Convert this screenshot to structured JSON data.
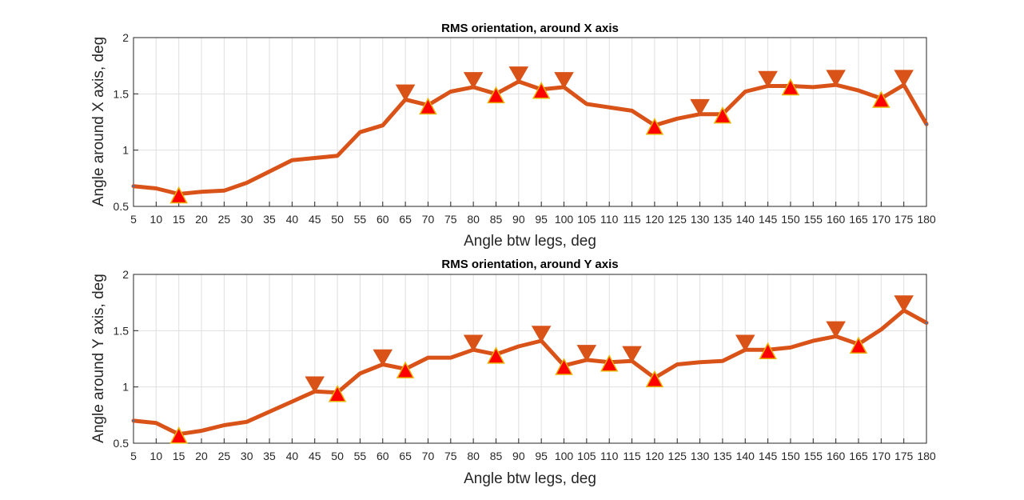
{
  "chart_data": [
    {
      "type": "line",
      "title": "RMS orientation, around X axis",
      "xlabel": "Angle btw legs, deg",
      "ylabel": "Angle around X axis, deg",
      "xlim": [
        5,
        180
      ],
      "ylim": [
        0.5,
        2
      ],
      "x_ticks": [
        5,
        10,
        15,
        20,
        25,
        30,
        35,
        40,
        45,
        50,
        55,
        60,
        65,
        70,
        75,
        80,
        85,
        90,
        95,
        100,
        105,
        110,
        115,
        120,
        125,
        130,
        135,
        140,
        145,
        150,
        155,
        160,
        165,
        170,
        175,
        180
      ],
      "y_ticks": [
        0.5,
        1,
        1.5,
        2
      ],
      "y_tick_labels": [
        "0.5",
        "1",
        "1.5",
        "2"
      ],
      "grid": true,
      "line_color": "#d95319",
      "marker_color": "#ff0000",
      "x": [
        5,
        10,
        15,
        20,
        25,
        30,
        35,
        40,
        45,
        50,
        55,
        60,
        65,
        70,
        75,
        80,
        85,
        90,
        95,
        100,
        105,
        110,
        115,
        120,
        125,
        130,
        135,
        140,
        145,
        150,
        155,
        160,
        165,
        170,
        175,
        180
      ],
      "y": [
        0.68,
        0.66,
        0.61,
        0.63,
        0.64,
        0.71,
        0.81,
        0.91,
        0.93,
        0.95,
        1.16,
        1.22,
        1.45,
        1.4,
        1.52,
        1.56,
        1.5,
        1.61,
        1.54,
        1.56,
        1.41,
        1.38,
        1.35,
        1.22,
        1.28,
        1.32,
        1.32,
        1.52,
        1.57,
        1.57,
        1.56,
        1.58,
        1.53,
        1.46,
        1.58,
        1.23
      ],
      "peaks_x": [
        65,
        80,
        90,
        100,
        130,
        145,
        160,
        175
      ],
      "troughs_x": [
        15,
        70,
        85,
        95,
        120,
        135,
        150,
        170
      ]
    },
    {
      "type": "line",
      "title": "RMS orientation, around Y axis",
      "xlabel": "Angle btw legs, deg",
      "ylabel": "Angle around Y axis, deg",
      "xlim": [
        5,
        180
      ],
      "ylim": [
        0.5,
        2
      ],
      "x_ticks": [
        5,
        10,
        15,
        20,
        25,
        30,
        35,
        40,
        45,
        50,
        55,
        60,
        65,
        70,
        75,
        80,
        85,
        90,
        95,
        100,
        105,
        110,
        115,
        120,
        125,
        130,
        135,
        140,
        145,
        150,
        155,
        160,
        165,
        170,
        175,
        180
      ],
      "y_ticks": [
        0.5,
        1,
        1.5,
        2
      ],
      "y_tick_labels": [
        "0.5",
        "1",
        "1.5",
        "2"
      ],
      "grid": true,
      "line_color": "#d95319",
      "marker_color": "#ff0000",
      "x": [
        5,
        10,
        15,
        20,
        25,
        30,
        35,
        40,
        45,
        50,
        55,
        60,
        65,
        70,
        75,
        80,
        85,
        90,
        95,
        100,
        105,
        110,
        115,
        120,
        125,
        130,
        135,
        140,
        145,
        150,
        155,
        160,
        165,
        170,
        175,
        180
      ],
      "y": [
        0.7,
        0.68,
        0.58,
        0.61,
        0.66,
        0.69,
        0.78,
        0.87,
        0.96,
        0.95,
        1.12,
        1.2,
        1.16,
        1.26,
        1.26,
        1.33,
        1.29,
        1.36,
        1.41,
        1.19,
        1.24,
        1.22,
        1.23,
        1.08,
        1.2,
        1.22,
        1.23,
        1.33,
        1.33,
        1.35,
        1.41,
        1.45,
        1.38,
        1.51,
        1.68,
        1.57
      ],
      "peaks_x": [
        45,
        60,
        80,
        95,
        105,
        115,
        140,
        160,
        175
      ],
      "troughs_x": [
        15,
        50,
        65,
        85,
        100,
        110,
        120,
        145,
        165
      ]
    }
  ]
}
